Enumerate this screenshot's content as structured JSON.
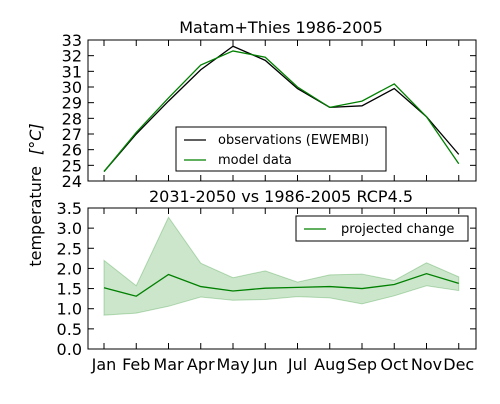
{
  "chart_data": [
    {
      "type": "line",
      "title": "Matam+Thies 1986-2005",
      "categories": [
        "Jan",
        "Feb",
        "Mar",
        "Apr",
        "May",
        "Jun",
        "Jul",
        "Aug",
        "Sep",
        "Oct",
        "Nov",
        "Dec"
      ],
      "ylim": [
        24,
        33
      ],
      "yticks": [
        24,
        25,
        26,
        27,
        28,
        29,
        30,
        31,
        32,
        33
      ],
      "grid": false,
      "legend_position": "bottom-center",
      "series": [
        {
          "name": "observations (EWEMBI)",
          "color": "#000000",
          "values": [
            24.6,
            27.0,
            29.1,
            31.1,
            32.6,
            31.7,
            29.9,
            28.7,
            28.8,
            29.9,
            28.1,
            25.7
          ]
        },
        {
          "name": "model data",
          "color": "#008000",
          "values": [
            24.6,
            27.1,
            29.3,
            31.4,
            32.3,
            31.9,
            30.0,
            28.7,
            29.1,
            30.2,
            28.1,
            25.1
          ]
        }
      ]
    },
    {
      "type": "area",
      "title": "2031-2050 vs 1986-2005 RCP4.5",
      "categories": [
        "Jan",
        "Feb",
        "Mar",
        "Apr",
        "May",
        "Jun",
        "Jul",
        "Aug",
        "Sep",
        "Oct",
        "Nov",
        "Dec"
      ],
      "ylim": [
        0.0,
        3.5
      ],
      "yticks": [
        "0.0",
        "0.5",
        "1.0",
        "1.5",
        "2.0",
        "2.5",
        "3.0",
        "3.5"
      ],
      "grid": false,
      "legend_position": "top-right",
      "series": [
        {
          "name": "projected change",
          "color": "#008000",
          "values": [
            1.52,
            1.31,
            1.85,
            1.55,
            1.44,
            1.51,
            1.53,
            1.55,
            1.5,
            1.6,
            1.87,
            1.63
          ],
          "lower": [
            0.84,
            0.89,
            1.06,
            1.29,
            1.21,
            1.23,
            1.3,
            1.27,
            1.12,
            1.32,
            1.57,
            1.45
          ],
          "upper": [
            2.2,
            1.57,
            3.27,
            2.13,
            1.77,
            1.94,
            1.66,
            1.84,
            1.86,
            1.7,
            2.14,
            1.79
          ],
          "band_color": "#008000"
        }
      ]
    }
  ],
  "shared_ylabel_prefix": "temperature",
  "shared_ylabel_unit": "[°C]"
}
